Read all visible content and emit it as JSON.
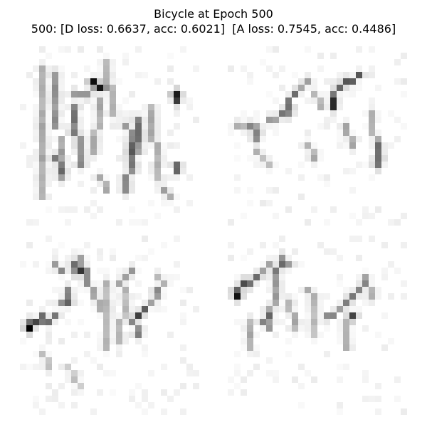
{
  "figure": {
    "title": "Bicycle at Epoch 500",
    "subtitle": "500: [D loss: 0.6637, acc: 0.6021]  [A loss: 0.7545, acc: 0.4486]"
  },
  "colors": {
    "background": "#ffffff",
    "ink": "#000000"
  },
  "panels": [
    {
      "id": "sample-1",
      "description_icon": "generated-doodle-image"
    },
    {
      "id": "sample-2",
      "description_icon": "generated-doodle-image"
    },
    {
      "id": "sample-3",
      "description_icon": "generated-doodle-image"
    },
    {
      "id": "sample-4",
      "description_icon": "generated-doodle-image"
    }
  ]
}
